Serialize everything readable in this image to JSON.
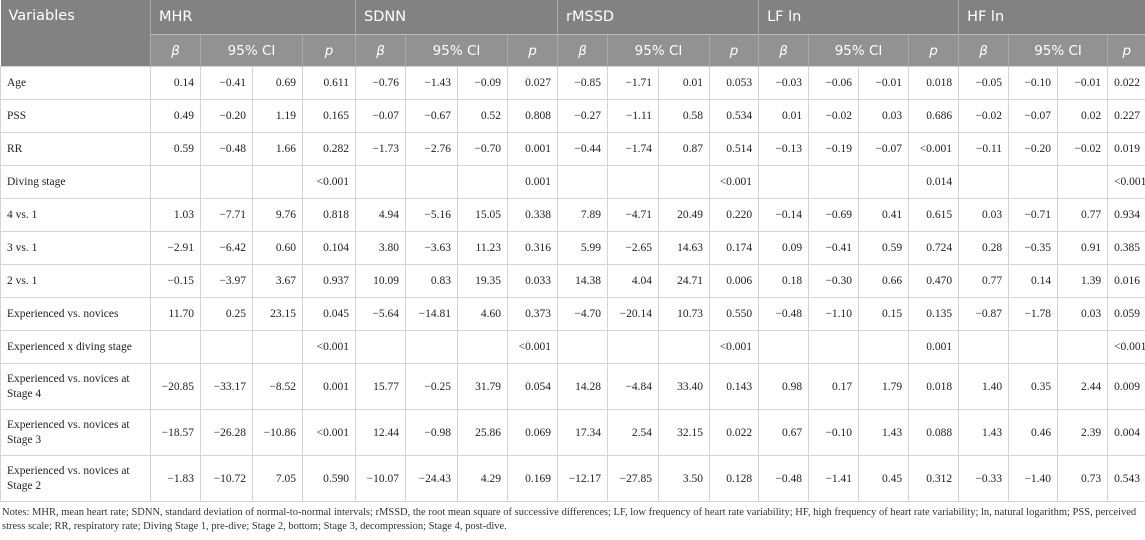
{
  "table": {
    "header": {
      "first": "Variables",
      "groups": [
        "MHR",
        "SDNN",
        "rMSSD",
        "LF ln",
        "HF ln"
      ],
      "sub": [
        "β",
        "95% CI",
        "p"
      ]
    },
    "rows": [
      {
        "label": "Age",
        "cells": [
          "0.14",
          "−0.41",
          "0.69",
          "0.611",
          "−0.76",
          "−1.43",
          "−0.09",
          "0.027",
          "−0.85",
          "−1.71",
          "0.01",
          "0.053",
          "−0.03",
          "−0.06",
          "−0.01",
          "0.018",
          "−0.05",
          "−0.10",
          "−0.01",
          "0.022"
        ]
      },
      {
        "label": "PSS",
        "cells": [
          "0.49",
          "−0.20",
          "1.19",
          "0.165",
          "−0.07",
          "−0.67",
          "0.52",
          "0.808",
          "−0.27",
          "−1.11",
          "0.58",
          "0.534",
          "0.01",
          "−0.02",
          "0.03",
          "0.686",
          "−0.02",
          "−0.07",
          "0.02",
          "0.227"
        ]
      },
      {
        "label": "RR",
        "cells": [
          "0.59",
          "−0.48",
          "1.66",
          "0.282",
          "−1.73",
          "−2.76",
          "−0.70",
          "0.001",
          "−0.44",
          "−1.74",
          "0.87",
          "0.514",
          "−0.13",
          "−0.19",
          "−0.07",
          "<0.001",
          "−0.11",
          "−0.20",
          "−0.02",
          "0.019"
        ]
      },
      {
        "label": "Diving stage",
        "cells": [
          null,
          null,
          null,
          "<0.001",
          null,
          null,
          null,
          "0.001",
          null,
          null,
          null,
          "<0.001",
          null,
          null,
          null,
          "0.014",
          null,
          null,
          null,
          "<0.001"
        ]
      },
      {
        "label": "4 vs. 1",
        "cells": [
          "1.03",
          "−7.71",
          "9.76",
          "0.818",
          "4.94",
          "−5.16",
          "15.05",
          "0.338",
          "7.89",
          "−4.71",
          "20.49",
          "0.220",
          "−0.14",
          "−0.69",
          "0.41",
          "0.615",
          "0.03",
          "−0.71",
          "0.77",
          "0.934"
        ]
      },
      {
        "label": "3 vs. 1",
        "cells": [
          "−2.91",
          "−6.42",
          "0.60",
          "0.104",
          "3.80",
          "−3.63",
          "11.23",
          "0.316",
          "5.99",
          "−2.65",
          "14.63",
          "0.174",
          "0.09",
          "−0.41",
          "0.59",
          "0.724",
          "0.28",
          "−0.35",
          "0.91",
          "0.385"
        ]
      },
      {
        "label": "2 vs. 1",
        "cells": [
          "−0.15",
          "−3.97",
          "3.67",
          "0.937",
          "10.09",
          "0.83",
          "19.35",
          "0.033",
          "14.38",
          "4.04",
          "24.71",
          "0.006",
          "0.18",
          "−0.30",
          "0.66",
          "0.470",
          "0.77",
          "0.14",
          "1.39",
          "0.016"
        ]
      },
      {
        "label": "Experienced vs. novices",
        "cells": [
          "11.70",
          "0.25",
          "23.15",
          "0.045",
          "−5.64",
          "−14.81",
          "4.60",
          "0.373",
          "−4.70",
          "−20.14",
          "10.73",
          "0.550",
          "−0.48",
          "−1.10",
          "0.15",
          "0.135",
          "−0.87",
          "−1.78",
          "0.03",
          "0.059"
        ]
      },
      {
        "label": "Experienced x diving stage",
        "cells": [
          null,
          null,
          null,
          "<0.001",
          null,
          null,
          null,
          "<0.001",
          null,
          null,
          null,
          "<0.001",
          null,
          null,
          null,
          "0.001",
          null,
          null,
          null,
          "<0.001"
        ]
      },
      {
        "label": "Experienced vs. novices at Stage 4",
        "cells": [
          "−20.85",
          "−33.17",
          "−8.52",
          "0.001",
          "15.77",
          "−0.25",
          "31.79",
          "0.054",
          "14.28",
          "−4.84",
          "33.40",
          "0.143",
          "0.98",
          "0.17",
          "1.79",
          "0.018",
          "1.40",
          "0.35",
          "2.44",
          "0.009"
        ]
      },
      {
        "label": "Experienced vs. novices at Stage 3",
        "cells": [
          "−18.57",
          "−26.28",
          "−10.86",
          "<0.001",
          "12.44",
          "−0.98",
          "25.86",
          "0.069",
          "17.34",
          "2.54",
          "32.15",
          "0.022",
          "0.67",
          "−0.10",
          "1.43",
          "0.088",
          "1.43",
          "0.46",
          "2.39",
          "0.004"
        ]
      },
      {
        "label": "Experienced vs. novices at Stage 2",
        "cells": [
          "−1.83",
          "−10.72",
          "7.05",
          "0.590",
          "−10.07",
          "−24.43",
          "4.29",
          "0.169",
          "−12.17",
          "−27.85",
          "3.50",
          "0.128",
          "−0.48",
          "−1.41",
          "0.45",
          "0.312",
          "−0.33",
          "−1.40",
          "0.73",
          "0.543"
        ]
      }
    ],
    "notes": "Notes: MHR, mean heart rate; SDNN, standard deviation of normal-to-normal intervals; rMSSD, the root mean square of successive differences; LF, low frequency of heart rate variability; HF, high frequency of heart rate variability; ln, natural logarithm; PSS, perceived stress scale; RR, respiratory rate; Diving Stage 1, pre-dive; Stage 2, bottom; Stage 3, decompression; Stage 4, post-dive."
  }
}
